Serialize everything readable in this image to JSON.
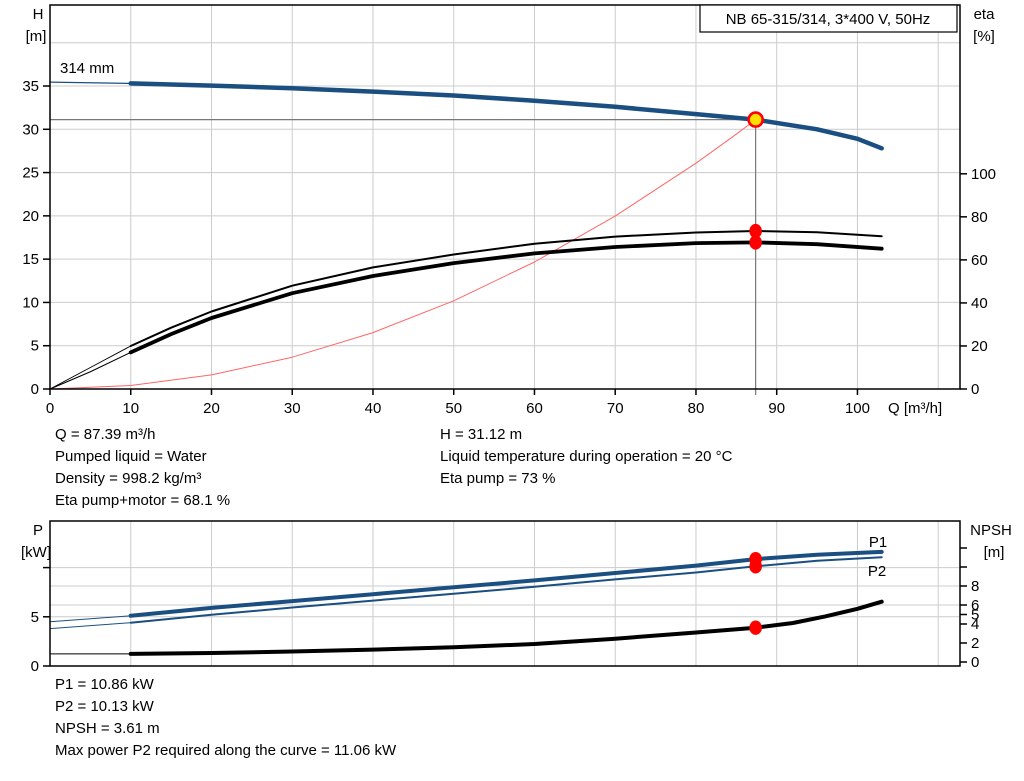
{
  "header": {
    "title_box": "NB 65-315/314, 3*400 V, 50Hz"
  },
  "colors": {
    "curve_blue": "#1b4f82",
    "label_blue": "#1f5fa8",
    "marker_red": "#ff0000",
    "system_curve_red": "#ff6666",
    "duty_yellow": "#ffe000",
    "grid_gray": "#cccccc",
    "duty_line_gray": "#777777",
    "frame_black": "#000000"
  },
  "chart_data": [
    {
      "type": "line",
      "name": "hq-performance-chart",
      "x_axis": {
        "label": "Q [m³/h]",
        "min": 0,
        "max": 112.7,
        "ticks": [
          0,
          10,
          20,
          30,
          40,
          50,
          60,
          70,
          80,
          90,
          100
        ],
        "grid_max": 110
      },
      "y_left": {
        "label": "H [m]",
        "min": 0,
        "ticks": [
          0,
          5,
          10,
          15,
          20,
          25,
          30,
          35
        ],
        "grid": [
          5,
          10,
          15,
          20,
          25,
          30,
          35,
          40
        ]
      },
      "y_right": {
        "label": "eta [%]",
        "min": 0,
        "ticks": [
          0,
          20,
          40,
          60,
          80,
          100
        ],
        "grid": []
      },
      "curve_label": "314 mm",
      "duty_point": {
        "q": 87.39,
        "h": 31.12,
        "eta_pump": 73,
        "eta_pump_motor": 68.1
      },
      "series": [
        {
          "name": "system-curve",
          "axis": "left",
          "color": "#ff6666",
          "width": 1,
          "points": [
            [
              0,
              0
            ],
            [
              10,
              0.41
            ],
            [
              20,
              1.63
            ],
            [
              30,
              3.67
            ],
            [
              40,
              6.52
            ],
            [
              50,
              10.19
            ],
            [
              60,
              14.67
            ],
            [
              70,
              19.97
            ],
            [
              80,
              26.08
            ],
            [
              85,
              29.43
            ],
            [
              87.39,
              31.12
            ]
          ]
        },
        {
          "name": "eta-pump-curve",
          "axis": "right",
          "color": "#000000",
          "width": 2,
          "thin_width": 0.9,
          "thin_until": 10,
          "points": [
            [
              0,
              0
            ],
            [
              5,
              10
            ],
            [
              10,
              20
            ],
            [
              15,
              28.5
            ],
            [
              20,
              36
            ],
            [
              30,
              48
            ],
            [
              40,
              56.5
            ],
            [
              50,
              62.5
            ],
            [
              60,
              67.5
            ],
            [
              70,
              70.8
            ],
            [
              80,
              72.7
            ],
            [
              87.39,
              73.4
            ],
            [
              95,
              72.8
            ],
            [
              103,
              71
            ]
          ]
        },
        {
          "name": "eta-pump-motor-curve",
          "axis": "right",
          "color": "#000000",
          "width": 3.8,
          "thin_width": 1.1,
          "thin_until": 10,
          "points": [
            [
              0,
              0
            ],
            [
              5,
              8
            ],
            [
              10,
              17
            ],
            [
              15,
              25.5
            ],
            [
              20,
              33
            ],
            [
              30,
              44.5
            ],
            [
              40,
              52.5
            ],
            [
              50,
              58.5
            ],
            [
              60,
              63
            ],
            [
              70,
              66
            ],
            [
              80,
              67.8
            ],
            [
              87.39,
              68.1
            ],
            [
              95,
              67.3
            ],
            [
              103,
              65.2
            ]
          ]
        },
        {
          "name": "head-curve",
          "axis": "left",
          "color": "#1b4f82",
          "width": 4.5,
          "thin_width": 1.3,
          "thin_until": 10,
          "points": [
            [
              0,
              35.45
            ],
            [
              10,
              35.3
            ],
            [
              20,
              35.05
            ],
            [
              30,
              34.75
            ],
            [
              40,
              34.35
            ],
            [
              50,
              33.9
            ],
            [
              60,
              33.3
            ],
            [
              70,
              32.6
            ],
            [
              80,
              31.75
            ],
            [
              87.39,
              31.12
            ],
            [
              95,
              30.0
            ],
            [
              100,
              28.9
            ],
            [
              103,
              27.8
            ]
          ]
        }
      ],
      "markers": [
        {
          "name": "eta-pump-point",
          "style": "dot",
          "axis": "right",
          "q": 87.39,
          "v": 73.4
        },
        {
          "name": "eta-pump-motor-point",
          "style": "dot",
          "axis": "right",
          "q": 87.39,
          "v": 68.1
        },
        {
          "name": "duty-point",
          "style": "duty",
          "axis": "left",
          "q": 87.39,
          "v": 31.12
        }
      ]
    },
    {
      "type": "line",
      "name": "power-npsh-chart",
      "x_axis": {
        "label": "",
        "min": 0,
        "max": 112.7,
        "ticks": [],
        "grid_max": 110
      },
      "y_left": {
        "label": "P [kW]",
        "min": 0,
        "ticks": [
          0,
          5
        ],
        "unlabeled_ticks": [
          10
        ],
        "grid": [
          5,
          10
        ]
      },
      "y_right": {
        "label": "NPSH [m]",
        "min": 0,
        "ticks": [
          0,
          2,
          4,
          5,
          6,
          8
        ],
        "unlabeled_ticks": [
          10,
          12
        ],
        "grid": [
          6,
          8
        ]
      },
      "series": [
        {
          "name": "npsh-curve",
          "axis": "right",
          "color": "#000000",
          "width": 4,
          "thin_width": 1,
          "thin_until": 10,
          "points": [
            [
              0,
              0.85
            ],
            [
              10,
              0.85
            ],
            [
              20,
              0.95
            ],
            [
              30,
              1.1
            ],
            [
              40,
              1.3
            ],
            [
              50,
              1.55
            ],
            [
              60,
              1.9
            ],
            [
              70,
              2.45
            ],
            [
              80,
              3.1
            ],
            [
              87.39,
              3.61
            ],
            [
              92,
              4.1
            ],
            [
              96,
              4.8
            ],
            [
              100,
              5.6
            ],
            [
              103,
              6.35
            ]
          ]
        },
        {
          "name": "p2-curve",
          "label": "P2",
          "axis": "left",
          "color": "#1b4f82",
          "width": 2,
          "thin_width": 1,
          "thin_until": 10,
          "points": [
            [
              0,
              3.8
            ],
            [
              10,
              4.4
            ],
            [
              20,
              5.2
            ],
            [
              30,
              5.95
            ],
            [
              40,
              6.65
            ],
            [
              50,
              7.35
            ],
            [
              60,
              8.05
            ],
            [
              70,
              8.8
            ],
            [
              80,
              9.5
            ],
            [
              87.39,
              10.13
            ],
            [
              95,
              10.7
            ],
            [
              103,
              11.06
            ]
          ]
        },
        {
          "name": "p1-curve",
          "label": "P1",
          "axis": "left",
          "color": "#1b4f82",
          "width": 4,
          "thin_width": 1,
          "thin_until": 10,
          "points": [
            [
              0,
              4.5
            ],
            [
              10,
              5.1
            ],
            [
              20,
              5.9
            ],
            [
              30,
              6.6
            ],
            [
              40,
              7.3
            ],
            [
              50,
              8.0
            ],
            [
              60,
              8.7
            ],
            [
              70,
              9.45
            ],
            [
              80,
              10.2
            ],
            [
              87.39,
              10.86
            ],
            [
              95,
              11.3
            ],
            [
              103,
              11.6
            ]
          ]
        }
      ],
      "markers": [
        {
          "name": "p1-point",
          "style": "dot",
          "axis": "left",
          "q": 87.39,
          "v": 10.86
        },
        {
          "name": "p2-point",
          "style": "dot",
          "axis": "left",
          "q": 87.39,
          "v": 10.13
        },
        {
          "name": "npsh-point",
          "style": "dot",
          "axis": "right",
          "q": 87.39,
          "v": 3.61
        }
      ]
    }
  ],
  "info_top_left": {
    "lines": [
      "Q = 87.39 m³/h",
      "Pumped liquid = Water",
      "Density = 998.2 kg/m³",
      "Eta pump+motor = 68.1 %"
    ]
  },
  "info_top_right": {
    "lines": [
      "H = 31.12 m",
      "Liquid temperature during operation = 20 °C",
      "Eta pump = 73 %"
    ]
  },
  "info_bottom": {
    "lines": [
      "P1 = 10.86 kW",
      "P2 = 10.13 kW",
      "NPSH = 3.61 m",
      "Max power P2 required along the curve = 11.06 kW"
    ]
  }
}
